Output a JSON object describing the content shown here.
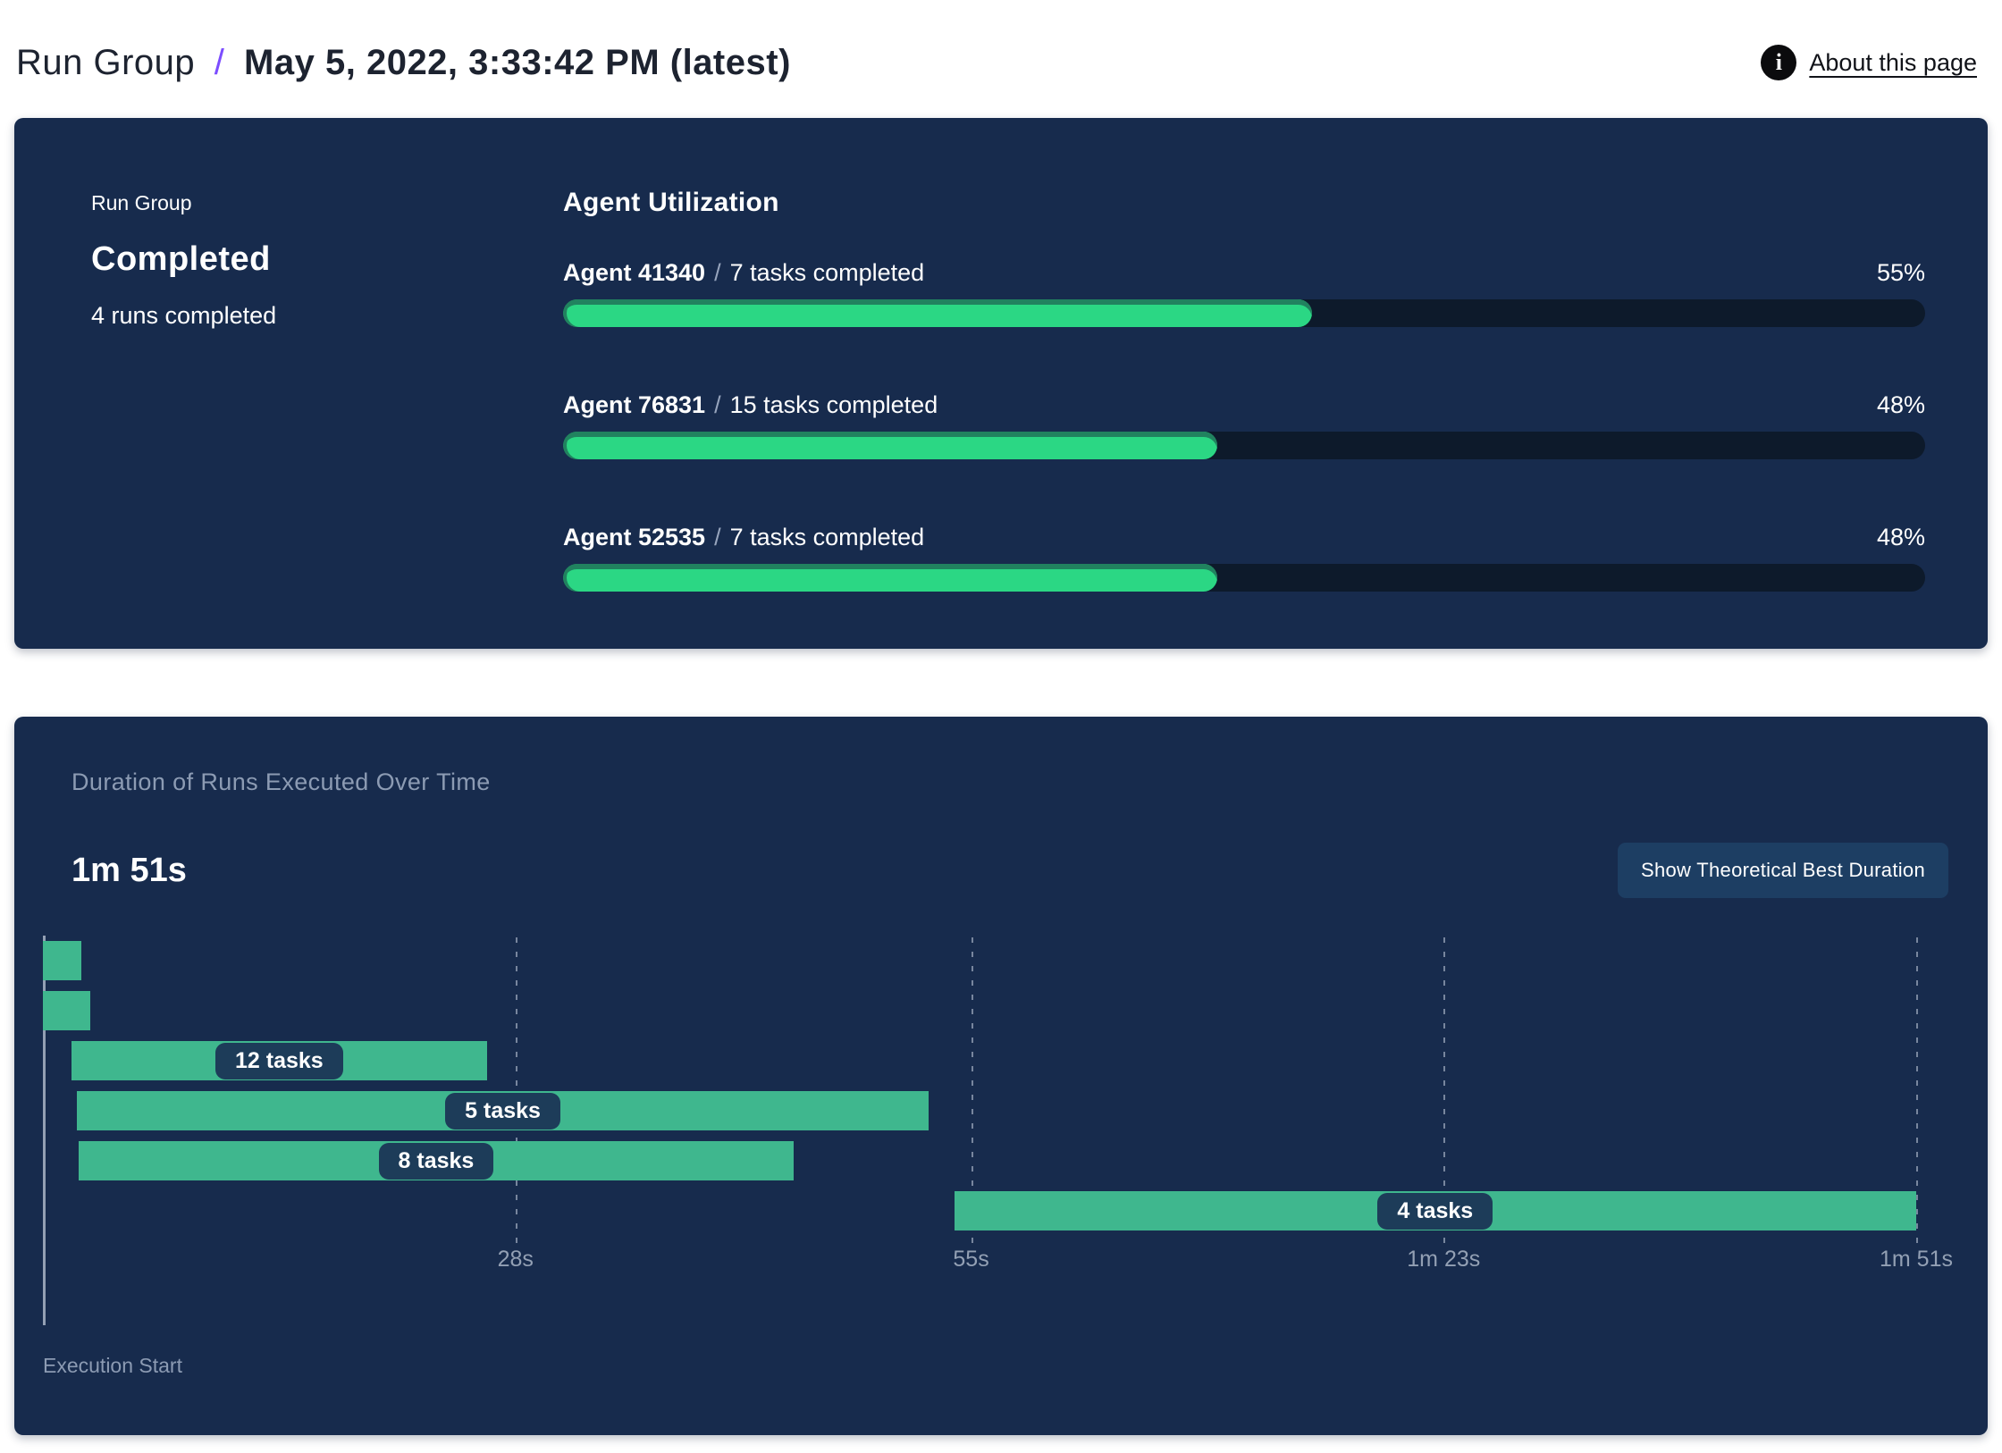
{
  "header": {
    "breadcrumb_root": "Run Group",
    "separator": "/",
    "title": "May 5, 2022, 3:33:42 PM (latest)",
    "info_icon_glyph": "i",
    "about_link": "About this page"
  },
  "colors": {
    "panel_bg": "#172b4d",
    "accent_purple": "#7c4dff",
    "progress_fill_green": "#2bd784",
    "progress_track": "#0d1a2b",
    "gantt_bar_green": "#3fb78e",
    "pill_bg": "#1d3c59",
    "muted_text": "#8c9bb3"
  },
  "status_panel": {
    "label": "Run Group",
    "status": "Completed",
    "sub": "4 runs completed"
  },
  "agent_utilization": {
    "title": "Agent Utilization",
    "separator": "/",
    "agents": [
      {
        "name": "Agent 41340",
        "tasks": "7 tasks completed",
        "percent": 55,
        "percent_label": "55%"
      },
      {
        "name": "Agent 76831",
        "tasks": "15 tasks completed",
        "percent": 48,
        "percent_label": "48%"
      },
      {
        "name": "Agent 52535",
        "tasks": "7 tasks completed",
        "percent": 48,
        "percent_label": "48%"
      }
    ]
  },
  "duration_panel": {
    "subtitle": "Duration of Runs Executed Over Time",
    "button_label": "Show Theoretical Best Duration",
    "execution_start_label": "Execution Start"
  },
  "chart_data": {
    "type": "gantt",
    "title": "Duration of Runs Executed Over Time",
    "total_duration_label": "1m 51s",
    "total_duration_seconds": 111,
    "xlabel": "Execution Start",
    "x_ticks": [
      {
        "seconds": 28,
        "label": "28s"
      },
      {
        "seconds": 55,
        "label": "55s"
      },
      {
        "seconds": 83,
        "label": "1m 23s"
      },
      {
        "seconds": 111,
        "label": "1m 51s"
      }
    ],
    "bars": [
      {
        "row": 0,
        "start_s": 0,
        "end_s": 2.3,
        "label": ""
      },
      {
        "row": 1,
        "start_s": 0,
        "end_s": 2.8,
        "label": ""
      },
      {
        "row": 2,
        "start_s": 1.7,
        "end_s": 26.3,
        "label": "12 tasks"
      },
      {
        "row": 3,
        "start_s": 2.0,
        "end_s": 52.5,
        "label": "5 tasks"
      },
      {
        "row": 4,
        "start_s": 2.1,
        "end_s": 44.5,
        "label": "8 tasks"
      },
      {
        "row": 5,
        "start_s": 54.0,
        "end_s": 111,
        "label": "4 tasks"
      }
    ]
  }
}
